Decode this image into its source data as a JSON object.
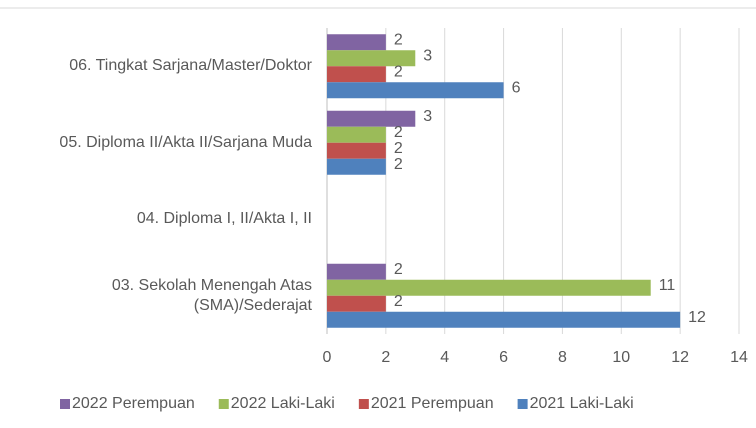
{
  "chart_data": {
    "type": "hbar",
    "categories": [
      "03. Sekolah Menengah Atas (SMA)/Sederajat",
      "04. Diploma I, II/Akta I, II",
      "05. Diploma II/Akta II/Sarjana Muda",
      "06. Tingkat Sarjana/Master/Doktor"
    ],
    "series": [
      {
        "name": "2022 Perempuan",
        "color": "#8064a2",
        "values": [
          2,
          null,
          3,
          2
        ]
      },
      {
        "name": "2022 Laki-Laki",
        "color": "#9bbb59",
        "values": [
          11,
          null,
          2,
          3
        ]
      },
      {
        "name": "2021 Perempuan",
        "color": "#c0504d",
        "values": [
          2,
          null,
          2,
          2
        ]
      },
      {
        "name": "2021 Laki-Laki",
        "color": "#4f81bd",
        "values": [
          12,
          null,
          2,
          6
        ]
      }
    ],
    "xlim": [
      0,
      14
    ],
    "xticks": [
      0,
      2,
      4,
      6,
      8,
      10,
      12,
      14
    ],
    "grid": true,
    "legend": "bottom"
  }
}
